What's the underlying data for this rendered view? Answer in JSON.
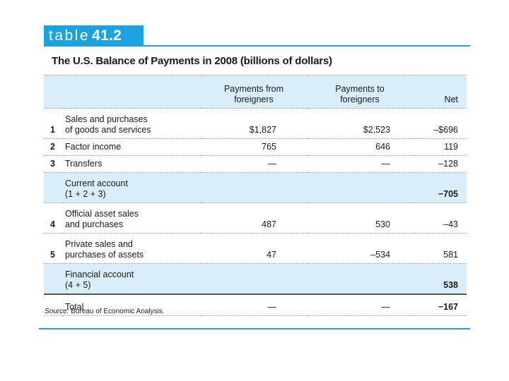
{
  "label": {
    "word": "table",
    "number": "41.2"
  },
  "title": "The U.S. Balance of Payments in 2008 (billions of dollars)",
  "headers": {
    "from": [
      "Payments from",
      "foreigners"
    ],
    "to": [
      "Payments to",
      "foreigners"
    ],
    "net": "Net"
  },
  "rows": [
    {
      "num": "1",
      "item": [
        "Sales and purchases",
        "of goods and services"
      ],
      "from": "$1,827",
      "to": "$2,523",
      "net": "–$696"
    },
    {
      "num": "2",
      "item": [
        "Factor income"
      ],
      "from": "765",
      "to": "646",
      "net": "119"
    },
    {
      "num": "3",
      "item": [
        "Transfers"
      ],
      "from": "—",
      "to": "—",
      "net": "–128"
    },
    {
      "num": "",
      "item": [
        "Current account",
        "(1 + 2 + 3)"
      ],
      "from": "",
      "to": "",
      "net": "−705"
    },
    {
      "num": "4",
      "item": [
        "Official asset sales",
        "and purchases"
      ],
      "from": "487",
      "to": "530",
      "net": "–43"
    },
    {
      "num": "5",
      "item": [
        "Private sales and",
        "purchases of assets"
      ],
      "from": "47",
      "to": "–534",
      "net": "581"
    },
    {
      "num": "",
      "item": [
        "Financial account",
        "(4 + 5)"
      ],
      "from": "",
      "to": "",
      "net": "538"
    },
    {
      "num": "",
      "item": [
        "Total"
      ],
      "from": "—",
      "to": "—",
      "net": "−167"
    }
  ],
  "source": {
    "label": "Source:",
    "text": " Bureau of Economic Analysis."
  }
}
